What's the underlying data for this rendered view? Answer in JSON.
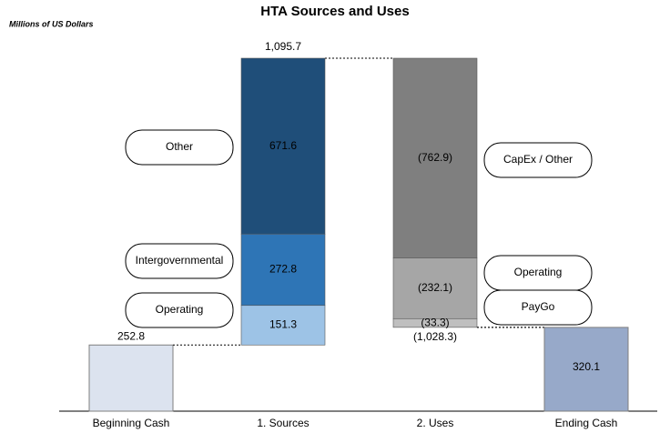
{
  "chart_data": {
    "type": "waterfall",
    "title": "HTA Sources and Uses",
    "subtitle": "Millions of US Dollars",
    "categories": [
      "Beginning Cash",
      "1. Sources",
      "2. Uses",
      "Ending Cash"
    ],
    "bars": [
      {
        "kind": "level",
        "value": 252.8,
        "value_label": "252.8",
        "color": "#dce3ef"
      },
      {
        "kind": "change",
        "segments": [
          {
            "name": "Operating",
            "value": 151.3,
            "value_label": "151.3",
            "color": "#9dc3e6"
          },
          {
            "name": "Intergovernmental",
            "value": 272.8,
            "value_label": "272.8",
            "color": "#2e75b6"
          },
          {
            "name": "Other",
            "value": 671.6,
            "value_label": "671.6",
            "color": "#1f4e79"
          }
        ],
        "total": {
          "value": 1095.7,
          "label": "1,095.7"
        }
      },
      {
        "kind": "change",
        "segments": [
          {
            "name": "CapEx / Other",
            "value": -762.9,
            "value_label": "(762.9)",
            "color": "#7f7f7f"
          },
          {
            "name": "Operating",
            "value": -232.1,
            "value_label": "(232.1)",
            "color": "#a6a6a6"
          },
          {
            "name": "PayGo",
            "value": -33.3,
            "value_label": "(33.3)",
            "color": "#bfbfbf"
          }
        ],
        "total": {
          "value": -1028.3,
          "label": "(1,028.3)"
        }
      },
      {
        "kind": "level",
        "value": 320.1,
        "value_label": "320.1",
        "color": "#97a9c9"
      }
    ]
  }
}
